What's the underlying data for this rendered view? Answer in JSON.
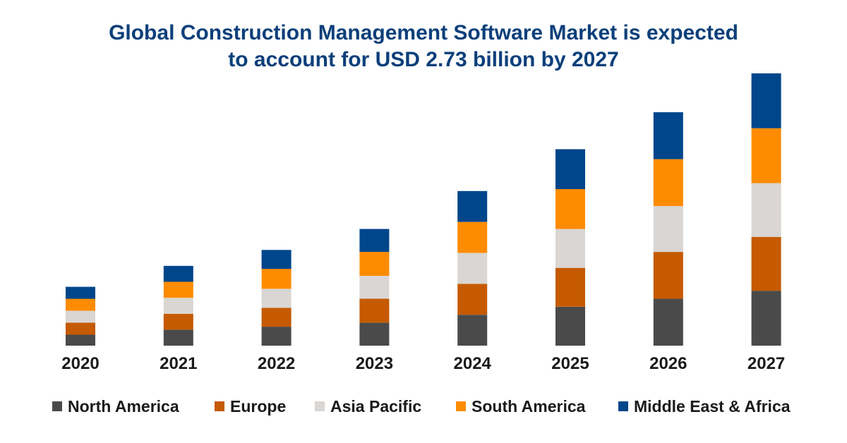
{
  "chart_data": {
    "type": "bar",
    "stacked": true,
    "title_lines": [
      "Global Construction Management Software Market is expected",
      "to account for USD 2.73 billion by 2027"
    ],
    "xlabel": "",
    "ylabel": "",
    "categories": [
      "2020",
      "2021",
      "2022",
      "2023",
      "2024",
      "2025",
      "2026",
      "2027"
    ],
    "series": [
      {
        "name": "North America",
        "color": "#4a4a4a",
        "values": [
          0.11,
          0.16,
          0.19,
          0.23,
          0.31,
          0.39,
          0.47,
          0.55
        ]
      },
      {
        "name": "Europe",
        "color": "#c55a00",
        "values": [
          0.12,
          0.16,
          0.19,
          0.24,
          0.31,
          0.39,
          0.47,
          0.54
        ]
      },
      {
        "name": "Asia Pacific",
        "color": "#d9d6d3",
        "values": [
          0.12,
          0.16,
          0.19,
          0.23,
          0.31,
          0.39,
          0.46,
          0.54
        ]
      },
      {
        "name": "South America",
        "color": "#ff8c00",
        "values": [
          0.12,
          0.16,
          0.2,
          0.24,
          0.31,
          0.4,
          0.47,
          0.55
        ]
      },
      {
        "name": "Middle East & Africa",
        "color": "#00468b",
        "values": [
          0.12,
          0.16,
          0.19,
          0.23,
          0.31,
          0.4,
          0.47,
          0.55
        ]
      }
    ],
    "ylim": [
      0,
      2.73
    ],
    "grid": false,
    "legend_position": "bottom"
  }
}
